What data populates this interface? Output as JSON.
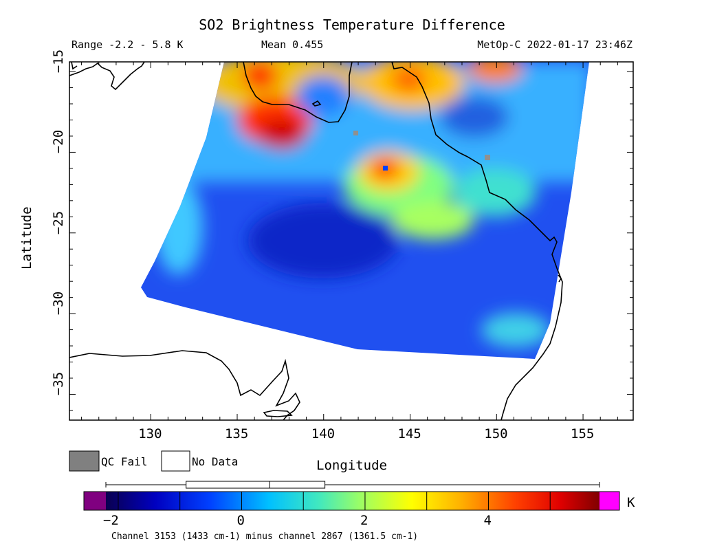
{
  "title": "SO2 Brightness Temperature Difference",
  "subtitle": {
    "range": "Range -2.2 - 5.8 K",
    "mean": "Mean 0.455",
    "satellite": "MetOp-C 2022-01-17 23:46Z"
  },
  "axes": {
    "xlabel": "Longitude",
    "ylabel": "Latitude",
    "xticks": [
      "130",
      "135",
      "140",
      "145",
      "150",
      "155"
    ],
    "yticks": [
      "−15",
      "−20",
      "−25",
      "−30",
      "−35"
    ]
  },
  "legend": {
    "qc_fail": "QC Fail",
    "no_data": "No Data",
    "qc_fail_color": "#808080"
  },
  "colorbar": {
    "unit": "K",
    "ticks": [
      "−2",
      "0",
      "2",
      "4"
    ],
    "under_color": "#800080",
    "over_color": "#ff00ff",
    "box_stats": {
      "min": -2.2,
      "q1": -0.9,
      "median": 0.455,
      "q3": 1.35,
      "max": 5.8
    }
  },
  "footnote": "Channel 3153 (1433 cm-1) minus channel 2867 (1361.5 cm-1)"
}
